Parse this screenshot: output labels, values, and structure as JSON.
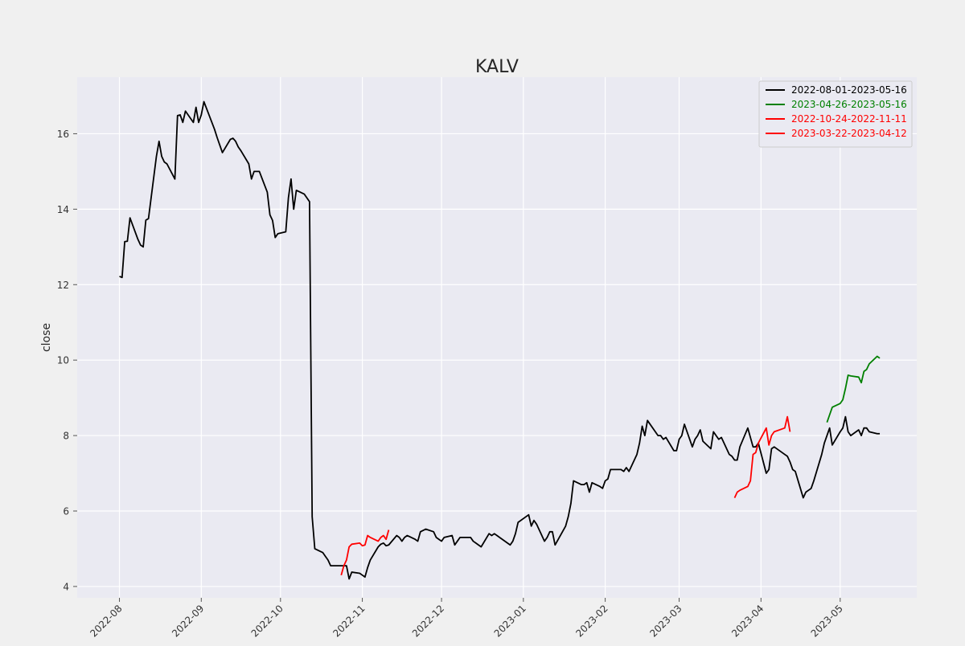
{
  "chart_data": {
    "type": "line",
    "title": "KALV",
    "xlabel": "",
    "ylabel": "close",
    "xlim": [
      "2022-07-16",
      "2023-05-30"
    ],
    "ylim": [
      3.7,
      17.5
    ],
    "x_ticks": [
      "2022-08",
      "2022-09",
      "2022-10",
      "2022-11",
      "2022-12",
      "2023-01",
      "2023-02",
      "2023-03",
      "2023-04",
      "2023-05"
    ],
    "y_ticks": [
      4,
      6,
      8,
      10,
      12,
      14,
      16
    ],
    "grid": true,
    "legend_position": "top-right",
    "legend": [
      {
        "label": "2022-08-01-2023-05-16",
        "color": "#000000"
      },
      {
        "label": "2023-04-26-2023-05-16",
        "color": "#008000"
      },
      {
        "label": "2022-10-24-2022-11-11",
        "color": "#ff0000"
      },
      {
        "label": "2023-03-22-2023-04-12",
        "color": "#ff0000"
      }
    ],
    "series": [
      {
        "name": "2022-08-01-2023-05-16",
        "color": "#000000",
        "points": [
          [
            "2022-08-01",
            12.22
          ],
          [
            "2022-08-02",
            12.19
          ],
          [
            "2022-08-03",
            13.14
          ],
          [
            "2022-08-04",
            13.15
          ],
          [
            "2022-08-05",
            13.77
          ],
          [
            "2022-08-08",
            13.2
          ],
          [
            "2022-08-09",
            13.05
          ],
          [
            "2022-08-10",
            13.0
          ],
          [
            "2022-08-11",
            13.71
          ],
          [
            "2022-08-12",
            13.75
          ],
          [
            "2022-08-15",
            15.4
          ],
          [
            "2022-08-16",
            15.8
          ],
          [
            "2022-08-17",
            15.4
          ],
          [
            "2022-08-18",
            15.25
          ],
          [
            "2022-08-19",
            15.2
          ],
          [
            "2022-08-22",
            14.8
          ],
          [
            "2022-08-23",
            16.48
          ],
          [
            "2022-08-24",
            16.5
          ],
          [
            "2022-08-25",
            16.3
          ],
          [
            "2022-08-26",
            16.6
          ],
          [
            "2022-08-29",
            16.3
          ],
          [
            "2022-08-30",
            16.7
          ],
          [
            "2022-08-31",
            16.3
          ],
          [
            "2022-09-01",
            16.5
          ],
          [
            "2022-09-02",
            16.85
          ],
          [
            "2022-09-06",
            16.12
          ],
          [
            "2022-09-07",
            15.9
          ],
          [
            "2022-09-08",
            15.7
          ],
          [
            "2022-09-09",
            15.5
          ],
          [
            "2022-09-12",
            15.85
          ],
          [
            "2022-09-13",
            15.88
          ],
          [
            "2022-09-14",
            15.8
          ],
          [
            "2022-09-15",
            15.65
          ],
          [
            "2022-09-16",
            15.55
          ],
          [
            "2022-09-19",
            15.2
          ],
          [
            "2022-09-20",
            14.8
          ],
          [
            "2022-09-21",
            15.0
          ],
          [
            "2022-09-22",
            15.0
          ],
          [
            "2022-09-23",
            15.0
          ],
          [
            "2022-09-26",
            14.45
          ],
          [
            "2022-09-27",
            13.85
          ],
          [
            "2022-09-28",
            13.7
          ],
          [
            "2022-09-29",
            13.25
          ],
          [
            "2022-09-30",
            13.35
          ],
          [
            "2022-10-03",
            13.4
          ],
          [
            "2022-10-04",
            14.3
          ],
          [
            "2022-10-05",
            14.8
          ],
          [
            "2022-10-06",
            14.0
          ],
          [
            "2022-10-07",
            14.5
          ],
          [
            "2022-10-10",
            14.4
          ],
          [
            "2022-10-11",
            14.3
          ],
          [
            "2022-10-12",
            14.2
          ],
          [
            "2022-10-13",
            5.85
          ],
          [
            "2022-10-14",
            5.0
          ],
          [
            "2022-10-17",
            4.9
          ],
          [
            "2022-10-18",
            4.8
          ],
          [
            "2022-10-19",
            4.7
          ],
          [
            "2022-10-20",
            4.55
          ],
          [
            "2022-10-21",
            4.55
          ],
          [
            "2022-10-24",
            4.55
          ],
          [
            "2022-10-25",
            4.55
          ],
          [
            "2022-10-26",
            4.55
          ],
          [
            "2022-10-27",
            4.2
          ],
          [
            "2022-10-28",
            4.38
          ],
          [
            "2022-10-31",
            4.35
          ],
          [
            "2022-11-01",
            4.3
          ],
          [
            "2022-11-02",
            4.25
          ],
          [
            "2022-11-03",
            4.5
          ],
          [
            "2022-11-04",
            4.7
          ],
          [
            "2022-11-07",
            5.05
          ],
          [
            "2022-11-08",
            5.12
          ],
          [
            "2022-11-09",
            5.15
          ],
          [
            "2022-11-10",
            5.08
          ],
          [
            "2022-11-11",
            5.1
          ],
          [
            "2022-11-14",
            5.35
          ],
          [
            "2022-11-15",
            5.3
          ],
          [
            "2022-11-16",
            5.2
          ],
          [
            "2022-11-17",
            5.3
          ],
          [
            "2022-11-18",
            5.35
          ],
          [
            "2022-11-21",
            5.25
          ],
          [
            "2022-11-22",
            5.2
          ],
          [
            "2022-11-23",
            5.45
          ],
          [
            "2022-11-25",
            5.52
          ],
          [
            "2022-11-28",
            5.45
          ],
          [
            "2022-11-29",
            5.3
          ],
          [
            "2022-11-30",
            5.25
          ],
          [
            "2022-12-01",
            5.2
          ],
          [
            "2022-12-02",
            5.3
          ],
          [
            "2022-12-05",
            5.35
          ],
          [
            "2022-12-06",
            5.1
          ],
          [
            "2022-12-07",
            5.2
          ],
          [
            "2022-12-08",
            5.3
          ],
          [
            "2022-12-09",
            5.3
          ],
          [
            "2022-12-12",
            5.3
          ],
          [
            "2022-12-13",
            5.2
          ],
          [
            "2022-12-14",
            5.15
          ],
          [
            "2022-12-15",
            5.1
          ],
          [
            "2022-12-16",
            5.05
          ],
          [
            "2022-12-19",
            5.4
          ],
          [
            "2022-12-20",
            5.35
          ],
          [
            "2022-12-21",
            5.4
          ],
          [
            "2022-12-22",
            5.35
          ],
          [
            "2022-12-23",
            5.3
          ],
          [
            "2022-12-27",
            5.1
          ],
          [
            "2022-12-28",
            5.2
          ],
          [
            "2022-12-29",
            5.4
          ],
          [
            "2022-12-30",
            5.7
          ],
          [
            "2023-01-03",
            5.9
          ],
          [
            "2023-01-04",
            5.6
          ],
          [
            "2023-01-05",
            5.75
          ],
          [
            "2023-01-06",
            5.65
          ],
          [
            "2023-01-09",
            5.2
          ],
          [
            "2023-01-10",
            5.3
          ],
          [
            "2023-01-11",
            5.45
          ],
          [
            "2023-01-12",
            5.45
          ],
          [
            "2023-01-13",
            5.1
          ],
          [
            "2023-01-17",
            5.6
          ],
          [
            "2023-01-18",
            5.85
          ],
          [
            "2023-01-19",
            6.2
          ],
          [
            "2023-01-20",
            6.8
          ],
          [
            "2023-01-23",
            6.7
          ],
          [
            "2023-01-24",
            6.7
          ],
          [
            "2023-01-25",
            6.75
          ],
          [
            "2023-01-26",
            6.5
          ],
          [
            "2023-01-27",
            6.75
          ],
          [
            "2023-01-30",
            6.65
          ],
          [
            "2023-01-31",
            6.6
          ],
          [
            "2023-02-01",
            6.8
          ],
          [
            "2023-02-02",
            6.85
          ],
          [
            "2023-02-03",
            7.1
          ],
          [
            "2023-02-06",
            7.1
          ],
          [
            "2023-02-07",
            7.1
          ],
          [
            "2023-02-08",
            7.05
          ],
          [
            "2023-02-09",
            7.15
          ],
          [
            "2023-02-10",
            7.05
          ],
          [
            "2023-02-13",
            7.5
          ],
          [
            "2023-02-14",
            7.8
          ],
          [
            "2023-02-15",
            8.25
          ],
          [
            "2023-02-16",
            8.0
          ],
          [
            "2023-02-17",
            8.4
          ],
          [
            "2023-02-21",
            8.0
          ],
          [
            "2023-02-22",
            8.0
          ],
          [
            "2023-02-23",
            7.9
          ],
          [
            "2023-02-24",
            7.95
          ],
          [
            "2023-02-27",
            7.6
          ],
          [
            "2023-02-28",
            7.6
          ],
          [
            "2023-03-01",
            7.9
          ],
          [
            "2023-03-02",
            8.0
          ],
          [
            "2023-03-03",
            8.3
          ],
          [
            "2023-03-06",
            7.7
          ],
          [
            "2023-03-07",
            7.9
          ],
          [
            "2023-03-08",
            8.0
          ],
          [
            "2023-03-09",
            8.15
          ],
          [
            "2023-03-10",
            7.85
          ],
          [
            "2023-03-13",
            7.65
          ],
          [
            "2023-03-14",
            8.1
          ],
          [
            "2023-03-15",
            8.0
          ],
          [
            "2023-03-16",
            7.9
          ],
          [
            "2023-03-17",
            7.95
          ],
          [
            "2023-03-20",
            7.5
          ],
          [
            "2023-03-21",
            7.45
          ],
          [
            "2023-03-22",
            7.35
          ],
          [
            "2023-03-23",
            7.35
          ],
          [
            "2023-03-24",
            7.7
          ],
          [
            "2023-03-27",
            8.2
          ],
          [
            "2023-03-28",
            7.95
          ],
          [
            "2023-03-29",
            7.7
          ],
          [
            "2023-03-30",
            7.7
          ],
          [
            "2023-03-31",
            7.8
          ],
          [
            "2023-04-03",
            7.0
          ],
          [
            "2023-04-04",
            7.1
          ],
          [
            "2023-04-05",
            7.65
          ],
          [
            "2023-04-06",
            7.7
          ],
          [
            "2023-04-10",
            7.5
          ],
          [
            "2023-04-11",
            7.45
          ],
          [
            "2023-04-12",
            7.3
          ],
          [
            "2023-04-13",
            7.1
          ],
          [
            "2023-04-14",
            7.05
          ],
          [
            "2023-04-17",
            6.35
          ],
          [
            "2023-04-18",
            6.5
          ],
          [
            "2023-04-19",
            6.55
          ],
          [
            "2023-04-20",
            6.6
          ],
          [
            "2023-04-21",
            6.8
          ],
          [
            "2023-04-24",
            7.5
          ],
          [
            "2023-04-25",
            7.8
          ],
          [
            "2023-04-26",
            8.0
          ],
          [
            "2023-04-27",
            8.2
          ],
          [
            "2023-04-28",
            7.75
          ],
          [
            "2023-05-01",
            8.1
          ],
          [
            "2023-05-02",
            8.2
          ],
          [
            "2023-05-03",
            8.5
          ],
          [
            "2023-05-04",
            8.1
          ],
          [
            "2023-05-05",
            8.0
          ],
          [
            "2023-05-08",
            8.15
          ],
          [
            "2023-05-09",
            8.0
          ],
          [
            "2023-05-10",
            8.2
          ],
          [
            "2023-05-11",
            8.2
          ],
          [
            "2023-05-12",
            8.1
          ],
          [
            "2023-05-15",
            8.05
          ],
          [
            "2023-05-16",
            8.05
          ]
        ]
      },
      {
        "name": "2023-04-26-2023-05-16",
        "color": "#008000",
        "points": [
          [
            "2023-04-26",
            8.35
          ],
          [
            "2023-04-27",
            8.55
          ],
          [
            "2023-04-28",
            8.75
          ],
          [
            "2023-05-01",
            8.85
          ],
          [
            "2023-05-02",
            8.95
          ],
          [
            "2023-05-03",
            9.25
          ],
          [
            "2023-05-04",
            9.6
          ],
          [
            "2023-05-05",
            9.58
          ],
          [
            "2023-05-08",
            9.55
          ],
          [
            "2023-05-09",
            9.4
          ],
          [
            "2023-05-10",
            9.7
          ],
          [
            "2023-05-11",
            9.75
          ],
          [
            "2023-05-12",
            9.9
          ],
          [
            "2023-05-15",
            10.1
          ],
          [
            "2023-05-16",
            10.05
          ]
        ]
      },
      {
        "name": "2022-10-24-2022-11-11",
        "color": "#ff0000",
        "points": [
          [
            "2022-10-24",
            4.3
          ],
          [
            "2022-10-25",
            4.55
          ],
          [
            "2022-10-26",
            4.7
          ],
          [
            "2022-10-27",
            5.05
          ],
          [
            "2022-10-28",
            5.12
          ],
          [
            "2022-10-31",
            5.15
          ],
          [
            "2022-11-01",
            5.08
          ],
          [
            "2022-11-02",
            5.1
          ],
          [
            "2022-11-03",
            5.35
          ],
          [
            "2022-11-04",
            5.3
          ],
          [
            "2022-11-07",
            5.2
          ],
          [
            "2022-11-08",
            5.3
          ],
          [
            "2022-11-09",
            5.35
          ],
          [
            "2022-11-10",
            5.25
          ],
          [
            "2022-11-11",
            5.5
          ]
        ]
      },
      {
        "name": "2023-03-22-2023-04-12",
        "color": "#ff0000",
        "points": [
          [
            "2023-03-22",
            6.35
          ],
          [
            "2023-03-23",
            6.5
          ],
          [
            "2023-03-24",
            6.55
          ],
          [
            "2023-03-27",
            6.65
          ],
          [
            "2023-03-28",
            6.8
          ],
          [
            "2023-03-29",
            7.5
          ],
          [
            "2023-03-30",
            7.55
          ],
          [
            "2023-03-31",
            7.8
          ],
          [
            "2023-04-03",
            8.2
          ],
          [
            "2023-04-04",
            7.75
          ],
          [
            "2023-04-05",
            8.0
          ],
          [
            "2023-04-06",
            8.1
          ],
          [
            "2023-04-10",
            8.2
          ],
          [
            "2023-04-11",
            8.5
          ],
          [
            "2023-04-12",
            8.1
          ]
        ]
      }
    ]
  }
}
